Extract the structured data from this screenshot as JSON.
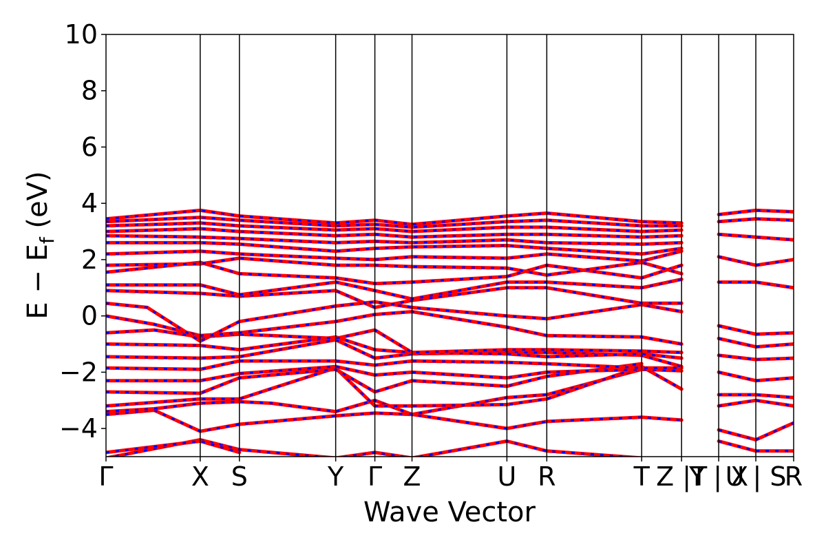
{
  "chart_data": {
    "type": "line",
    "title": "",
    "xlabel": "Wave Vector",
    "ylabel_main": "E − E",
    "ylabel_sub": "f",
    "ylabel_unit": " (eV)",
    "ylim": [
      -5,
      10
    ],
    "yticks": [
      10,
      8,
      6,
      4,
      2,
      0,
      -2,
      -4
    ],
    "ytick_labels": [
      "10",
      "8",
      "6",
      "4",
      "2",
      "0",
      "−2",
      "−4"
    ],
    "xlim": [
      0,
      10
    ],
    "kpoints": [
      {
        "label": "Γ",
        "x": 0.0
      },
      {
        "label": "X",
        "x": 1.37
      },
      {
        "label": "S",
        "x": 1.94
      },
      {
        "label": "Y",
        "x": 3.34
      },
      {
        "label": "Γ",
        "x": 3.91
      },
      {
        "label": "Z",
        "x": 4.45
      },
      {
        "label": "U",
        "x": 5.83
      },
      {
        "label": "R",
        "x": 6.41
      },
      {
        "label": "T",
        "x": 7.79
      },
      {
        "label": "Z |T",
        "x": 8.37
      },
      {
        "label": "Y | X",
        "x": 8.91
      },
      {
        "label": "U | S",
        "x": 9.45
      },
      {
        "label": "R",
        "x": 10.0
      }
    ],
    "grid": false,
    "colors": {
      "band_primary": "#ff0000",
      "band_dash": "#0000ff",
      "axis": "#000000"
    },
    "series": [
      {
        "values": [
          [
            0,
            -5.05
          ],
          [
            1.37,
            -4.4
          ],
          [
            1.94,
            -4.75
          ],
          [
            3.34,
            -5.05
          ],
          [
            3.91,
            -4.85
          ],
          [
            4.45,
            -5.05
          ],
          [
            5.83,
            -4.45
          ],
          [
            6.41,
            -4.8
          ],
          [
            7.79,
            -5.05
          ]
        ]
      },
      {
        "values": [
          [
            0,
            -4.85
          ],
          [
            1.37,
            -4.45
          ],
          [
            1.94,
            -4.85
          ]
        ]
      },
      {
        "values": [
          [
            0,
            -3.5
          ],
          [
            0.7,
            -3.35
          ],
          [
            1.37,
            -4.1
          ],
          [
            1.94,
            -3.85
          ],
          [
            3.34,
            -3.55
          ],
          [
            3.91,
            -3.45
          ],
          [
            4.45,
            -3.5
          ],
          [
            5.83,
            -4.0
          ],
          [
            6.41,
            -3.75
          ],
          [
            7.79,
            -3.6
          ],
          [
            8.37,
            -3.7
          ]
        ]
      },
      {
        "values": [
          [
            0,
            -3.4
          ],
          [
            0.7,
            -3.3
          ],
          [
            1.37,
            -3.1
          ],
          [
            1.94,
            -3.05
          ],
          [
            2.4,
            -3.1
          ],
          [
            3.34,
            -3.4
          ],
          [
            3.91,
            -3.0
          ],
          [
            4.45,
            -3.5
          ],
          [
            5.83,
            -2.9
          ],
          [
            6.41,
            -2.8
          ],
          [
            7.79,
            -1.9
          ]
        ]
      },
      {
        "values": [
          [
            0,
            -3.2
          ],
          [
            1.37,
            -2.95
          ],
          [
            1.94,
            -2.95
          ],
          [
            3.34,
            -1.85
          ],
          [
            3.91,
            -3.2
          ],
          [
            4.45,
            -3.2
          ],
          [
            5.83,
            -3.15
          ],
          [
            6.41,
            -2.95
          ],
          [
            7.79,
            -1.8
          ],
          [
            8.37,
            -2.6
          ]
        ]
      },
      {
        "values": [
          [
            0,
            -2.7
          ],
          [
            1.37,
            -2.75
          ],
          [
            1.94,
            -2.2
          ],
          [
            3.34,
            -1.9
          ],
          [
            3.91,
            -2.7
          ],
          [
            4.45,
            -2.3
          ],
          [
            5.83,
            -2.5
          ],
          [
            6.41,
            -2.15
          ],
          [
            7.79,
            -1.7
          ]
        ]
      },
      {
        "values": [
          [
            0,
            -2.3
          ],
          [
            1.37,
            -2.3
          ],
          [
            1.94,
            -2.05
          ],
          [
            3.34,
            -1.8
          ],
          [
            3.91,
            -2.1
          ],
          [
            4.45,
            -2.0
          ],
          [
            5.83,
            -2.2
          ],
          [
            6.41,
            -2.0
          ],
          [
            7.79,
            -1.9
          ],
          [
            8.37,
            -1.95
          ]
        ]
      },
      {
        "values": [
          [
            0,
            -1.85
          ],
          [
            1.37,
            -1.9
          ],
          [
            1.94,
            -1.6
          ],
          [
            3.34,
            -1.6
          ],
          [
            3.91,
            -1.75
          ],
          [
            4.45,
            -1.6
          ],
          [
            5.83,
            -1.65
          ],
          [
            6.41,
            -1.7
          ],
          [
            7.79,
            -1.85
          ],
          [
            8.37,
            -1.85
          ]
        ]
      },
      {
        "values": [
          [
            0,
            -1.45
          ],
          [
            1.37,
            -1.5
          ],
          [
            1.94,
            -1.45
          ],
          [
            3.34,
            -0.85
          ],
          [
            3.91,
            -1.5
          ],
          [
            4.45,
            -1.35
          ],
          [
            5.83,
            -1.3
          ],
          [
            6.41,
            -1.3
          ],
          [
            7.79,
            -1.4
          ],
          [
            8.37,
            -1.8
          ]
        ]
      },
      {
        "values": [
          [
            0,
            -1.0
          ],
          [
            1.37,
            -1.05
          ],
          [
            1.94,
            -1.2
          ],
          [
            3.34,
            -0.75
          ],
          [
            3.91,
            -1.2
          ],
          [
            4.45,
            -1.3
          ],
          [
            5.83,
            -1.35
          ],
          [
            6.41,
            -1.45
          ],
          [
            7.79,
            -1.35
          ],
          [
            8.37,
            -1.5
          ]
        ]
      },
      {
        "values": [
          [
            0,
            -0.6
          ],
          [
            0.7,
            -0.5
          ],
          [
            1.37,
            -0.75
          ],
          [
            1.94,
            -0.65
          ],
          [
            3.34,
            -0.8
          ],
          [
            3.91,
            -0.5
          ],
          [
            4.45,
            -1.3
          ],
          [
            5.83,
            -1.2
          ],
          [
            6.41,
            -1.2
          ],
          [
            7.79,
            -1.25
          ],
          [
            8.37,
            -1.3
          ]
        ]
      },
      {
        "values": [
          [
            0,
            0.0
          ],
          [
            0.7,
            -0.3
          ],
          [
            1.37,
            -0.7
          ],
          [
            1.94,
            -0.6
          ],
          [
            3.34,
            -0.2
          ],
          [
            3.91,
            0.05
          ],
          [
            4.45,
            0.15
          ],
          [
            5.83,
            -0.4
          ],
          [
            6.41,
            -0.7
          ],
          [
            7.79,
            -0.75
          ],
          [
            8.37,
            -1.0
          ]
        ]
      },
      {
        "values": [
          [
            0,
            0.45
          ],
          [
            0.6,
            0.3
          ],
          [
            1.37,
            -0.9
          ],
          [
            1.94,
            -0.2
          ],
          [
            3.34,
            0.35
          ],
          [
            3.91,
            0.5
          ],
          [
            4.45,
            0.3
          ],
          [
            5.83,
            0.0
          ],
          [
            6.41,
            -0.1
          ],
          [
            7.79,
            0.4
          ],
          [
            8.37,
            0.15
          ]
        ]
      },
      {
        "values": [
          [
            0,
            0.9
          ],
          [
            1.37,
            0.8
          ],
          [
            1.94,
            0.7
          ],
          [
            3.34,
            0.9
          ],
          [
            3.91,
            0.3
          ],
          [
            4.45,
            0.55
          ],
          [
            5.83,
            1.0
          ],
          [
            6.41,
            1.0
          ],
          [
            7.79,
            0.45
          ],
          [
            8.37,
            0.45
          ]
        ]
      },
      {
        "values": [
          [
            0,
            1.1
          ],
          [
            1.37,
            1.1
          ],
          [
            1.94,
            0.75
          ],
          [
            3.34,
            1.2
          ],
          [
            3.91,
            0.9
          ],
          [
            4.45,
            0.6
          ],
          [
            5.83,
            1.2
          ],
          [
            6.41,
            1.2
          ],
          [
            7.79,
            1.0
          ],
          [
            8.37,
            1.3
          ]
        ]
      },
      {
        "values": [
          [
            0,
            1.55
          ],
          [
            1.37,
            1.9
          ],
          [
            1.94,
            1.5
          ],
          [
            3.34,
            1.35
          ],
          [
            3.91,
            1.15
          ],
          [
            4.45,
            1.2
          ],
          [
            5.83,
            1.4
          ],
          [
            6.41,
            1.8
          ],
          [
            7.79,
            1.35
          ],
          [
            8.37,
            1.8
          ]
        ]
      },
      {
        "values": [
          [
            0,
            1.8
          ],
          [
            1.37,
            1.85
          ],
          [
            1.94,
            2.05
          ],
          [
            3.34,
            1.8
          ],
          [
            3.91,
            1.8
          ],
          [
            4.45,
            1.75
          ],
          [
            5.83,
            1.7
          ],
          [
            6.41,
            1.45
          ],
          [
            7.79,
            1.9
          ],
          [
            8.37,
            1.5
          ]
        ]
      },
      {
        "values": [
          [
            0,
            2.2
          ],
          [
            1.37,
            2.3
          ],
          [
            1.94,
            2.2
          ],
          [
            3.34,
            2.05
          ],
          [
            3.91,
            2.0
          ],
          [
            4.45,
            2.1
          ],
          [
            5.83,
            2.05
          ],
          [
            6.41,
            2.2
          ],
          [
            7.79,
            1.95
          ],
          [
            8.37,
            2.3
          ]
        ]
      },
      {
        "values": [
          [
            0,
            2.6
          ],
          [
            1.37,
            2.6
          ],
          [
            1.94,
            2.55
          ],
          [
            3.34,
            2.3
          ],
          [
            3.91,
            2.4
          ],
          [
            4.45,
            2.45
          ],
          [
            5.83,
            2.5
          ],
          [
            6.41,
            2.4
          ],
          [
            7.79,
            2.2
          ],
          [
            8.37,
            2.4
          ]
        ]
      },
      {
        "values": [
          [
            0,
            2.85
          ],
          [
            1.37,
            2.8
          ],
          [
            1.94,
            2.75
          ],
          [
            3.34,
            2.6
          ],
          [
            3.91,
            2.65
          ],
          [
            4.45,
            2.6
          ],
          [
            5.83,
            2.7
          ],
          [
            6.41,
            2.6
          ],
          [
            7.79,
            2.55
          ],
          [
            8.37,
            2.6
          ]
        ]
      },
      {
        "values": [
          [
            0,
            3.0
          ],
          [
            1.37,
            3.1
          ],
          [
            1.94,
            3.0
          ],
          [
            3.34,
            2.85
          ],
          [
            3.91,
            2.9
          ],
          [
            4.45,
            2.8
          ],
          [
            5.83,
            2.9
          ],
          [
            6.41,
            2.9
          ],
          [
            7.79,
            2.8
          ],
          [
            8.37,
            2.85
          ]
        ]
      },
      {
        "values": [
          [
            0,
            3.2
          ],
          [
            1.37,
            3.3
          ],
          [
            1.94,
            3.2
          ],
          [
            3.34,
            3.05
          ],
          [
            3.91,
            3.1
          ],
          [
            4.45,
            3.0
          ],
          [
            5.83,
            3.15
          ],
          [
            6.41,
            3.15
          ],
          [
            7.79,
            3.0
          ],
          [
            8.37,
            3.05
          ]
        ]
      },
      {
        "values": [
          [
            0,
            3.35
          ],
          [
            1.37,
            3.5
          ],
          [
            1.94,
            3.4
          ],
          [
            3.34,
            3.2
          ],
          [
            3.91,
            3.25
          ],
          [
            4.45,
            3.15
          ],
          [
            5.83,
            3.35
          ],
          [
            6.41,
            3.4
          ],
          [
            7.79,
            3.2
          ],
          [
            8.37,
            3.2
          ]
        ]
      },
      {
        "values": [
          [
            0,
            3.45
          ],
          [
            1.37,
            3.75
          ],
          [
            1.94,
            3.55
          ],
          [
            3.34,
            3.3
          ],
          [
            3.91,
            3.4
          ],
          [
            4.45,
            3.25
          ],
          [
            5.83,
            3.55
          ],
          [
            6.41,
            3.65
          ],
          [
            7.79,
            3.35
          ],
          [
            8.37,
            3.3
          ]
        ]
      },
      {
        "values": [
          [
            8.91,
            3.6
          ],
          [
            9.45,
            3.75
          ],
          [
            10,
            3.7
          ]
        ]
      },
      {
        "values": [
          [
            8.91,
            3.35
          ],
          [
            9.45,
            3.45
          ],
          [
            10,
            3.4
          ]
        ]
      },
      {
        "values": [
          [
            8.91,
            2.9
          ],
          [
            9.45,
            2.8
          ],
          [
            10,
            2.7
          ]
        ]
      },
      {
        "values": [
          [
            8.91,
            2.1
          ],
          [
            9.45,
            1.8
          ],
          [
            10,
            2.0
          ]
        ]
      },
      {
        "values": [
          [
            8.91,
            1.2
          ],
          [
            9.45,
            1.2
          ],
          [
            10,
            1.0
          ]
        ]
      },
      {
        "values": [
          [
            8.91,
            -0.35
          ],
          [
            9.45,
            -0.65
          ],
          [
            10,
            -0.6
          ]
        ]
      },
      {
        "values": [
          [
            8.91,
            -0.8
          ],
          [
            9.45,
            -1.1
          ],
          [
            10,
            -1.0
          ]
        ]
      },
      {
        "values": [
          [
            8.91,
            -1.4
          ],
          [
            9.45,
            -1.55
          ],
          [
            10,
            -1.5
          ]
        ]
      },
      {
        "values": [
          [
            8.91,
            -2.0
          ],
          [
            9.45,
            -2.3
          ],
          [
            10,
            -2.2
          ]
        ]
      },
      {
        "values": [
          [
            8.91,
            -2.8
          ],
          [
            9.45,
            -2.8
          ],
          [
            10,
            -2.9
          ]
        ]
      },
      {
        "values": [
          [
            8.91,
            -3.2
          ],
          [
            9.45,
            -3.0
          ],
          [
            10,
            -3.2
          ]
        ]
      },
      {
        "values": [
          [
            8.91,
            -4.05
          ],
          [
            9.45,
            -4.4
          ],
          [
            10,
            -3.8
          ]
        ]
      },
      {
        "values": [
          [
            8.91,
            -4.45
          ],
          [
            9.45,
            -4.8
          ],
          [
            10,
            -4.8
          ]
        ]
      }
    ]
  }
}
